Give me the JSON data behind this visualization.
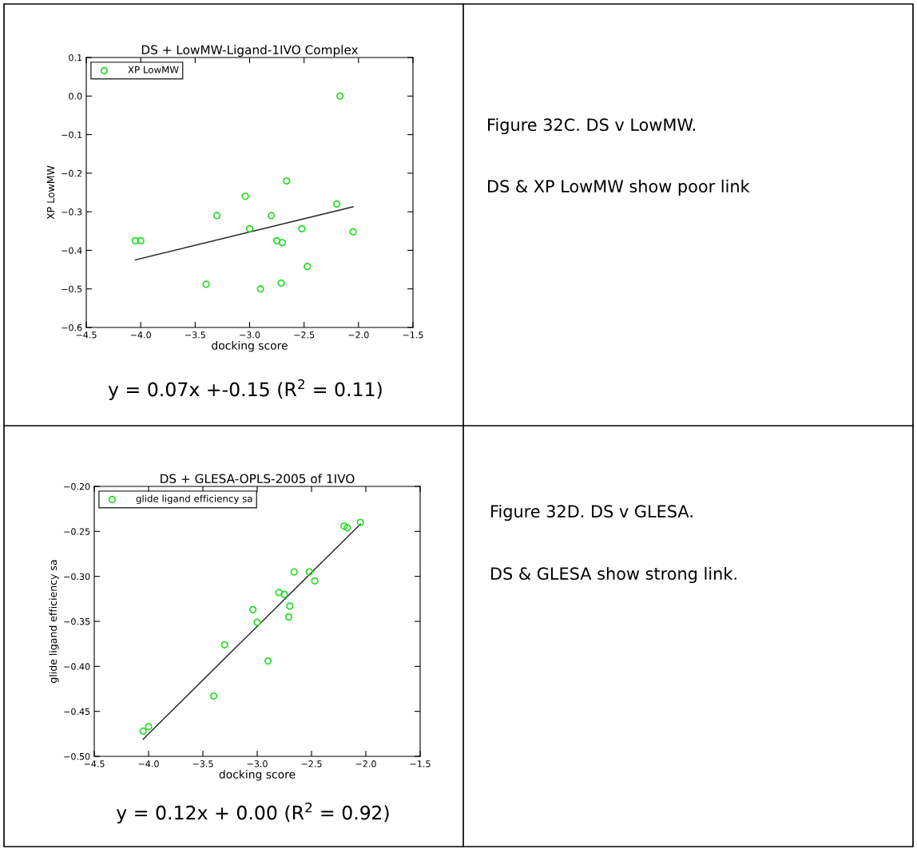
{
  "chart_data": [
    {
      "type": "scatter",
      "title": "DS + LowMW-Ligand-1IVO Complex",
      "xlabel": "docking score",
      "ylabel": "XP LowMW",
      "xlim": [
        -4.5,
        -1.5
      ],
      "xticks": [
        {
          "value": -4.5,
          "label": "−4.5"
        },
        {
          "value": -4.0,
          "label": "−4.0"
        },
        {
          "value": -3.5,
          "label": "−3.5"
        },
        {
          "value": -3.0,
          "label": "−3.0"
        },
        {
          "value": -2.5,
          "label": "−2.5"
        },
        {
          "value": -2.0,
          "label": "−2.0"
        },
        {
          "value": -1.5,
          "label": "−1.5"
        }
      ],
      "ylim": [
        -0.6,
        0.1
      ],
      "yticks": [
        {
          "value": -0.6,
          "label": "−0.6"
        },
        {
          "value": -0.5,
          "label": "−0.5"
        },
        {
          "value": -0.4,
          "label": "−0.4"
        },
        {
          "value": -0.3,
          "label": "−0.3"
        },
        {
          "value": -0.2,
          "label": "−0.2"
        },
        {
          "value": -0.1,
          "label": "−0.1"
        },
        {
          "value": 0.0,
          "label": "0.0"
        },
        0.1
      ],
      "grid": false,
      "legend": "top left",
      "marker": "circle",
      "series": [
        {
          "name": "XP LowMW",
          "color": "#22dd22",
          "x": [
            -4.05,
            -4.0,
            -3.4,
            -3.3,
            -3.04,
            -3.0,
            -2.9,
            -2.8,
            -2.75,
            -2.7,
            -2.71,
            -2.66,
            -2.52,
            -2.47,
            -2.2,
            -2.17,
            -2.05
          ],
          "values": [
            -0.375,
            -0.375,
            -0.488,
            -0.31,
            -0.26,
            -0.344,
            -0.5,
            -0.31,
            -0.375,
            -0.38,
            -0.485,
            -0.22,
            -0.344,
            -0.442,
            -0.28,
            0.0,
            -0.352
          ]
        },
        {
          "type": "line",
          "color": "#222222",
          "marker": "none",
          "x": [
            -4.05,
            -2.05
          ],
          "values": [
            -0.425,
            -0.287
          ]
        }
      ],
      "annotations": [
        "y = 0.07x +-0.15 (R$^{2}$ = 0.11)",
        "Figure 32C. DS v LowMW.",
        "DS & XP LowMW show poor link"
      ]
    },
    {
      "type": "scatter",
      "title": "DS + GLESA-OPLS-2005 of 1IVO",
      "xlabel": "docking score",
      "ylabel": "glide ligand efficiency sa",
      "xlim": [
        -4.5,
        -1.5
      ],
      "xticks": [
        {
          "value": -4.5,
          "label": "−4.5"
        },
        {
          "value": -4.0,
          "label": "−4.0"
        },
        {
          "value": -3.5,
          "label": "−3.5"
        },
        {
          "value": -3.0,
          "label": "−3.0"
        },
        {
          "value": -2.5,
          "label": "−2.5"
        },
        {
          "value": -2.0,
          "label": "−2.0"
        },
        {
          "value": -1.5,
          "label": "−1.5"
        }
      ],
      "ylim": [
        -0.5,
        -0.2
      ],
      "yticks": [
        {
          "value": -0.5,
          "label": "−0.50"
        },
        {
          "value": -0.45,
          "label": "−0.45"
        },
        {
          "value": -0.4,
          "label": "−0.40"
        },
        {
          "value": -0.35,
          "label": "−0.35"
        },
        {
          "value": -0.3,
          "label": "−0.30"
        },
        {
          "value": -0.25,
          "label": "−0.25"
        },
        {
          "value": -0.2,
          "label": "−0.20"
        }
      ],
      "grid": false,
      "legend": "top left",
      "marker": "circle",
      "series": [
        {
          "name": "glide ligand efficiency sa",
          "color": "#22dd22",
          "x": [
            -4.05,
            -4.0,
            -3.4,
            -3.3,
            -3.04,
            -3.0,
            -2.9,
            -2.8,
            -2.75,
            -2.7,
            -2.71,
            -2.66,
            -2.52,
            -2.47,
            -2.2,
            -2.17,
            -2.05
          ],
          "values": [
            -0.472,
            -0.467,
            -0.433,
            -0.376,
            -0.337,
            -0.351,
            -0.394,
            -0.318,
            -0.32,
            -0.333,
            -0.345,
            -0.295,
            -0.295,
            -0.305,
            -0.244,
            -0.246,
            -0.24
          ]
        },
        {
          "type": "line",
          "color": "#222222",
          "marker": "none",
          "x": [
            -4.05,
            -2.05
          ],
          "values": [
            -0.481,
            -0.242
          ]
        }
      ],
      "annotations": [
        "y = 0.12x + 0.00 (R$^{2}$ = 0.92)",
        "Figure 32D. DS v GLESA.",
        "DS & GLESA show strong link."
      ]
    }
  ]
}
